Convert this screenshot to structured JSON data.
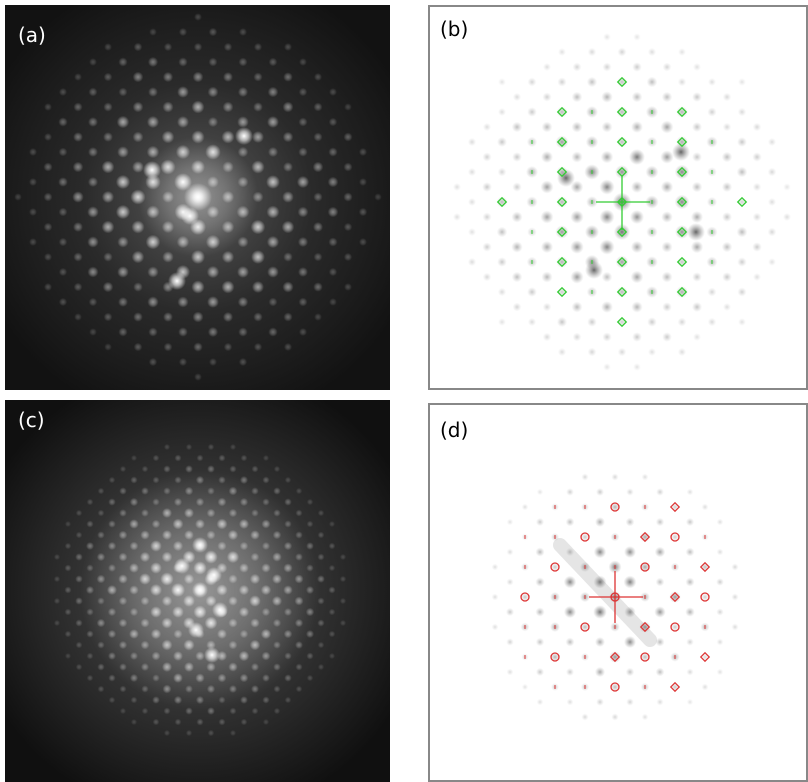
{
  "panels": [
    {
      "label": "(a)"
    },
    {
      "label": "(b)"
    },
    {
      "label": "(c)"
    },
    {
      "label": "(d)"
    }
  ]
}
